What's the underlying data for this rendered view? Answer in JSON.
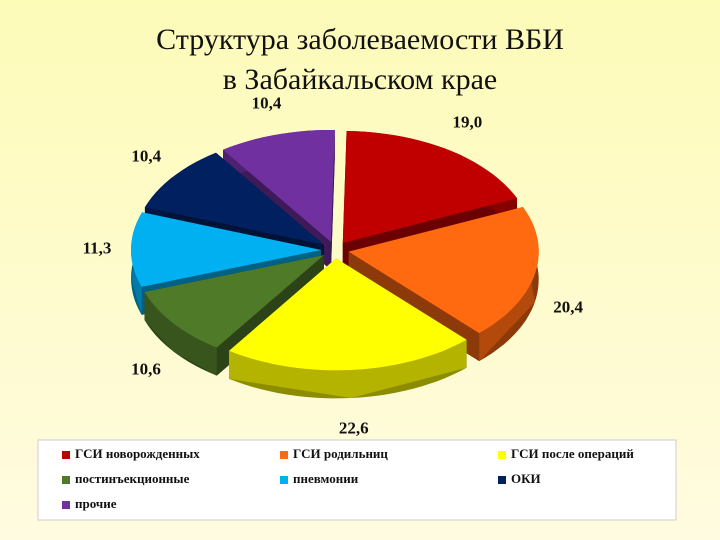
{
  "chart_data": {
    "type": "pie3d",
    "title": [
      "Структура заболеваемости ВБИ",
      "в Забайкальском крае"
    ],
    "categories": [
      "ГСИ новорожденных",
      "ГСИ родильниц",
      "ГСИ после операций",
      "постинъекционные",
      "пневмонии",
      "ОКИ",
      "прочие"
    ],
    "values": [
      19.0,
      20.4,
      22.6,
      10.6,
      11.3,
      10.4,
      10.4
    ],
    "value_labels": [
      "19,0",
      "20,4",
      "22,6",
      "10,6",
      "11,3",
      "10,4",
      "10,4"
    ],
    "colors": [
      "#c00000",
      "#ff6a10",
      "#ffff00",
      "#4f7a28",
      "#00b0f0",
      "#002060",
      "#7030a0"
    ],
    "legend": "bottom"
  }
}
